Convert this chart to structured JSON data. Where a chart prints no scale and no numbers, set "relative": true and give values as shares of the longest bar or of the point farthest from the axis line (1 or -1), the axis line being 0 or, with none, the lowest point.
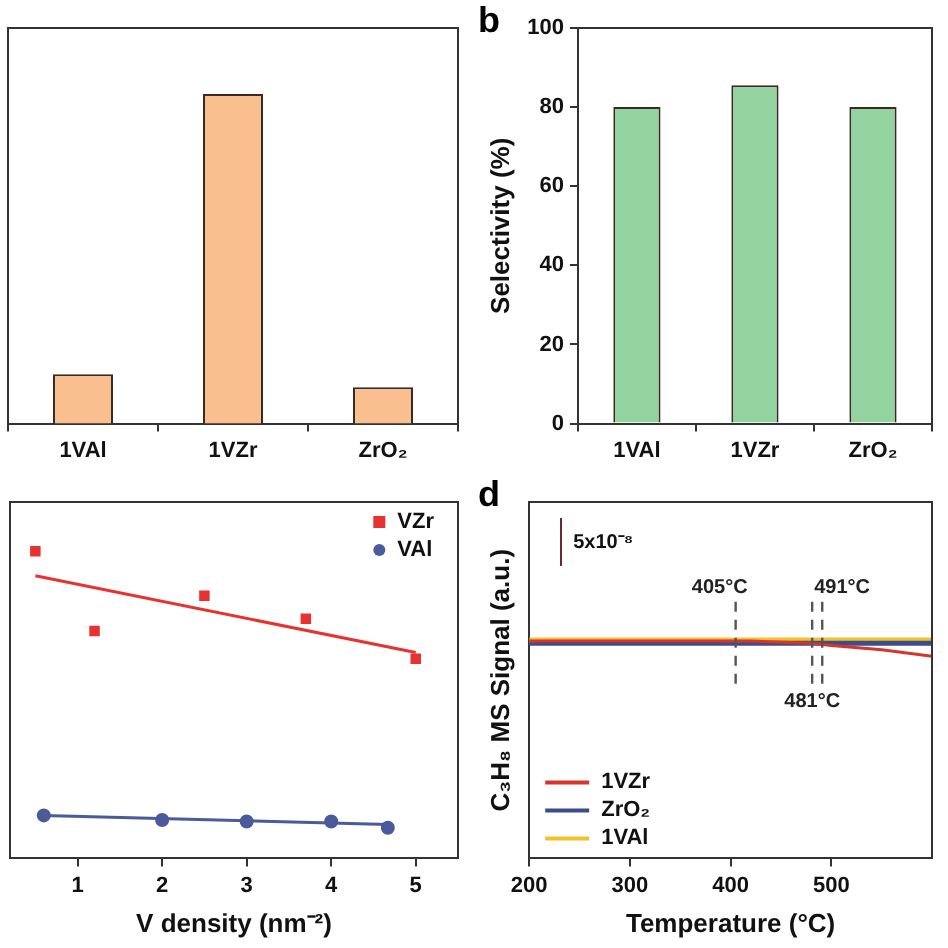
{
  "chart_data": [
    {
      "type": "bar",
      "categories": [
        "1VAl",
        "1VZr",
        "ZrO₂"
      ],
      "values": [
        0.15,
        1,
        0.11
      ],
      "color": "#f9bf8f",
      "relative": true,
      "grid": false
    },
    {
      "type": "bar",
      "categories": [
        "1VAl",
        "1VZr",
        "ZrO₂"
      ],
      "values": [
        80,
        85.5,
        80
      ],
      "color": "#93d3a0",
      "ylabel": "Selectivity (%)",
      "ylim": [
        0,
        100
      ],
      "yticks": [
        0,
        20,
        40,
        60,
        80,
        100
      ],
      "grid": false,
      "annotations": [
        "b"
      ]
    },
    {
      "type": "scatter",
      "xlabel": "V density (nm⁻²)",
      "xlim": [
        0.2,
        5.5
      ],
      "xticks": [
        1,
        2,
        3,
        4,
        5
      ],
      "relative": true,
      "grid": false,
      "legend": "top right",
      "series": [
        {
          "name": "VZr",
          "color": "#e8322f",
          "marker": "square",
          "x": [
            0.5,
            1.2,
            2.5,
            3.7,
            5
          ],
          "values": [
            1,
            0.74,
            0.855,
            0.78,
            0.65
          ]
        },
        {
          "name": "VAl",
          "color": "#4a5a9a",
          "marker": "circle",
          "x": [
            0.6,
            2,
            3,
            4,
            4.67
          ],
          "values": [
            0.14,
            0.125,
            0.12,
            0.12,
            0.1
          ]
        },
        {
          "type": "line",
          "color": "#e8322f",
          "x": [
            0.5,
            5
          ],
          "values": [
            0.92,
            0.67
          ]
        },
        {
          "type": "line",
          "color": "#4a5a9a",
          "x": [
            0.6,
            4.67
          ],
          "values": [
            0.14,
            0.11
          ]
        }
      ]
    },
    {
      "type": "line",
      "xlabel": "Temperature (°C)",
      "ylabel": "C₃H₈ MS Signal (a.u.)",
      "xlim": [
        200,
        600
      ],
      "xticks": [
        200,
        300,
        400,
        500
      ],
      "relative": true,
      "grid": false,
      "legend": "bottom left",
      "annotations": [
        "d",
        "5x10⁻⁸"
      ],
      "ref_lines": [
        {
          "axis": "x",
          "value": 405,
          "label": "405°C",
          "color": "#555555",
          "line_style": "dashed"
        },
        {
          "axis": "x",
          "value": 481,
          "label": "481°C",
          "color": "#555555",
          "line_style": "dashed"
        },
        {
          "axis": "x",
          "value": 491,
          "label": "491°C",
          "color": "#555555",
          "line_style": "dashed"
        }
      ],
      "series": [
        {
          "name": "1VZr",
          "color": "#d9342b",
          "x": [
            200,
            420,
            480,
            500,
            550,
            600
          ],
          "values": [
            1,
            1,
            0.99,
            0.98,
            0.96,
            0.93
          ]
        },
        {
          "name": "ZrO₂",
          "color": "#3d4d8c",
          "x": [
            200,
            600
          ],
          "values": [
            0.99,
            0.99
          ]
        },
        {
          "name": "1VAl",
          "color": "#f2c12e",
          "x": [
            200,
            600
          ],
          "values": [
            1,
            1
          ]
        }
      ]
    }
  ]
}
